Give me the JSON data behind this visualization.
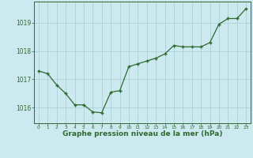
{
  "x": [
    0,
    1,
    2,
    3,
    4,
    5,
    6,
    7,
    8,
    9,
    10,
    11,
    12,
    13,
    14,
    15,
    16,
    17,
    18,
    19,
    20,
    21,
    22,
    23
  ],
  "y": [
    1017.3,
    1017.2,
    1016.8,
    1016.5,
    1016.1,
    1016.1,
    1015.85,
    1015.82,
    1016.55,
    1016.6,
    1017.45,
    1017.55,
    1017.65,
    1017.75,
    1017.9,
    1018.2,
    1018.15,
    1018.15,
    1018.15,
    1018.3,
    1018.95,
    1019.15,
    1019.15,
    1019.5
  ],
  "line_color": "#2d6a2d",
  "marker_color": "#2d6a2d",
  "bg_color": "#cce9f0",
  "grid_color": "#b0d4dc",
  "axis_color": "#2d6a2d",
  "tick_color": "#2d6a2d",
  "xlabel": "Graphe pression niveau de la mer (hPa)",
  "xlabel_fontsize": 6.5,
  "yticks": [
    1016,
    1017,
    1018,
    1019
  ],
  "xtick_labels": [
    "0",
    "1",
    "2",
    "3",
    "4",
    "5",
    "6",
    "7",
    "8",
    "9",
    "10",
    "11",
    "12",
    "13",
    "14",
    "15",
    "16",
    "17",
    "18",
    "19",
    "20",
    "21",
    "22",
    "23"
  ],
  "ylim": [
    1015.45,
    1019.75
  ],
  "xlim": [
    -0.5,
    23.5
  ]
}
